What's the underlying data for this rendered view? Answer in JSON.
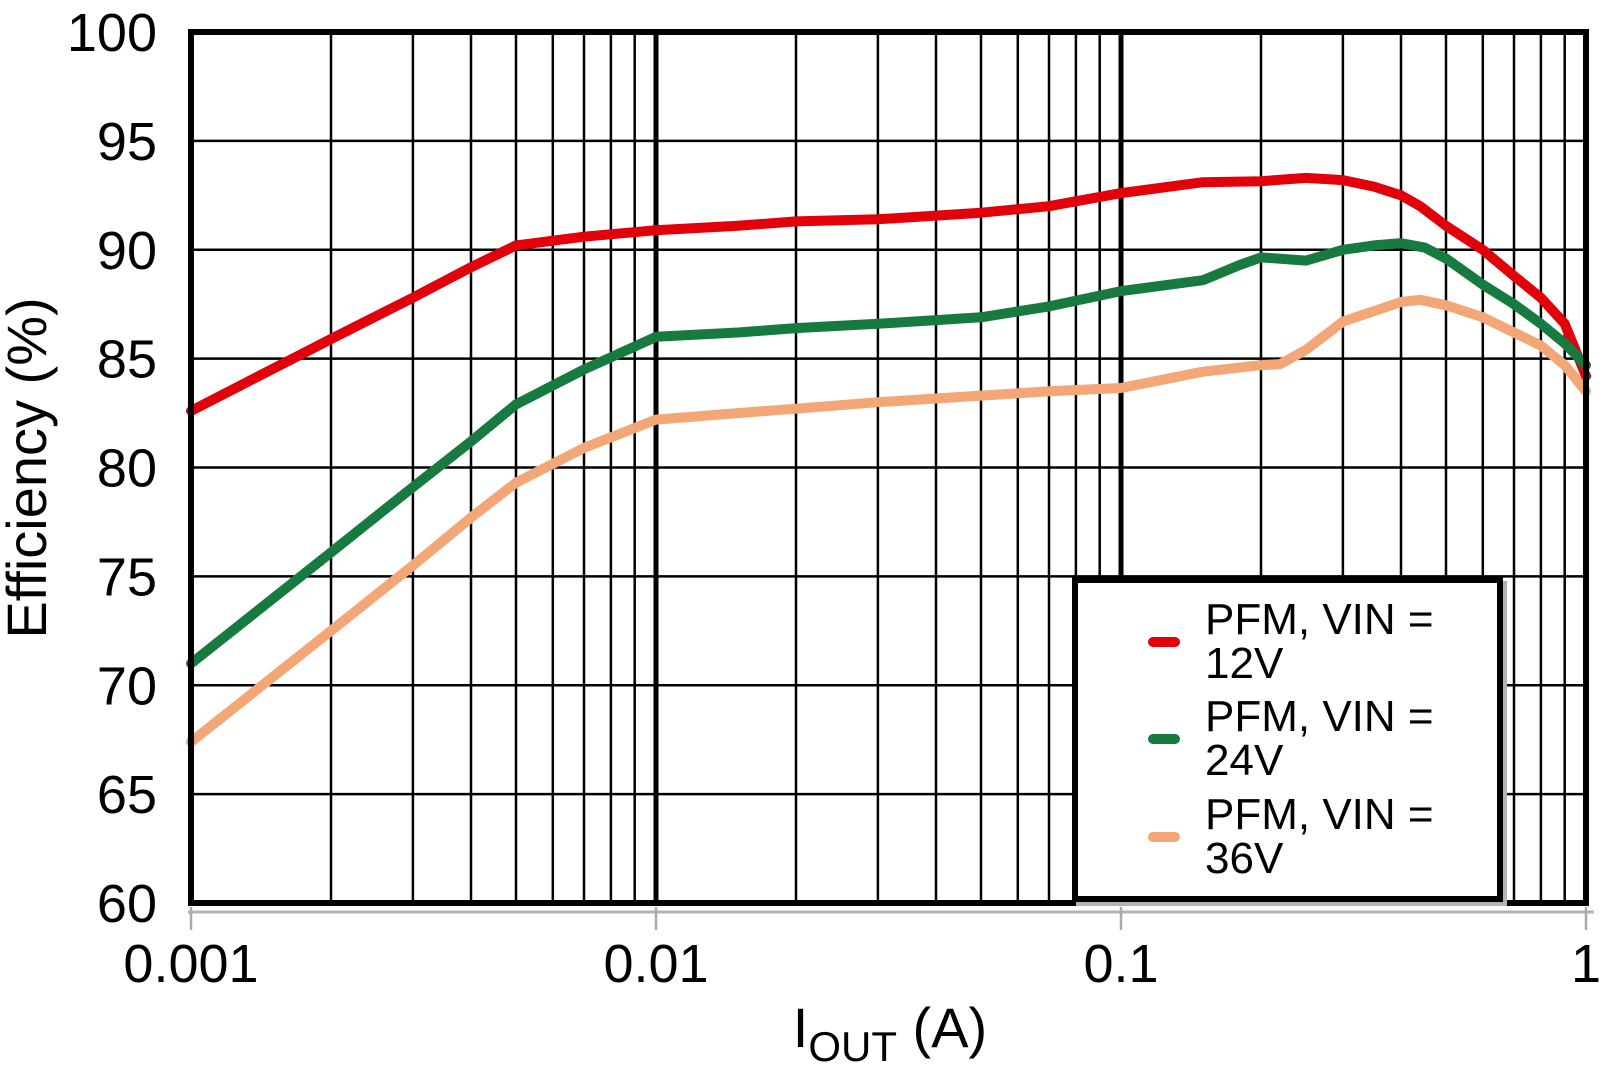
{
  "chart_data": {
    "type": "line",
    "title": "",
    "xlabel": {
      "main": "I",
      "sub": "OUT",
      "rest": " (A)"
    },
    "ylabel": "Efficiency (%)",
    "x_scale": "log",
    "xlim": [
      0.001,
      1
    ],
    "ylim": [
      60,
      100
    ],
    "y_step": 5,
    "grid": "on",
    "legend_position": "bottom-right-overlay",
    "x_ticks": [
      {
        "value": 0.001,
        "label": "0.001"
      },
      {
        "value": 0.01,
        "label": "0.01"
      },
      {
        "value": 0.1,
        "label": "0.1"
      },
      {
        "value": 1,
        "label": "1"
      }
    ],
    "y_ticks": [
      {
        "value": 60,
        "label": "60"
      },
      {
        "value": 65,
        "label": "65"
      },
      {
        "value": 70,
        "label": "70"
      },
      {
        "value": 75,
        "label": "75"
      },
      {
        "value": 80,
        "label": "80"
      },
      {
        "value": 85,
        "label": "85"
      },
      {
        "value": 90,
        "label": "90"
      },
      {
        "value": 95,
        "label": "95"
      },
      {
        "value": 100,
        "label": "100"
      }
    ],
    "series": [
      {
        "name": "PFM, VIN = 12V",
        "color": "#E2000B",
        "points": [
          [
            0.001,
            82.6
          ],
          [
            0.002,
            85.9
          ],
          [
            0.003,
            87.8
          ],
          [
            0.004,
            89.2
          ],
          [
            0.005,
            90.2
          ],
          [
            0.007,
            90.6
          ],
          [
            0.01,
            90.9
          ],
          [
            0.015,
            91.1
          ],
          [
            0.02,
            91.3
          ],
          [
            0.03,
            91.4
          ],
          [
            0.05,
            91.7
          ],
          [
            0.07,
            92.0
          ],
          [
            0.1,
            92.6
          ],
          [
            0.15,
            93.1
          ],
          [
            0.2,
            93.15
          ],
          [
            0.25,
            93.3
          ],
          [
            0.3,
            93.2
          ],
          [
            0.35,
            92.9
          ],
          [
            0.4,
            92.5
          ],
          [
            0.44,
            92.0
          ],
          [
            0.5,
            91.1
          ],
          [
            0.6,
            90.0
          ],
          [
            0.7,
            88.8
          ],
          [
            0.8,
            87.8
          ],
          [
            0.9,
            86.6
          ],
          [
            1,
            84.2
          ]
        ]
      },
      {
        "name": "PFM, VIN = 24V",
        "color": "#177B3F",
        "points": [
          [
            0.001,
            71.0
          ],
          [
            0.002,
            76.1
          ],
          [
            0.003,
            79.1
          ],
          [
            0.004,
            81.2
          ],
          [
            0.005,
            82.9
          ],
          [
            0.007,
            84.5
          ],
          [
            0.01,
            86.0
          ],
          [
            0.015,
            86.2
          ],
          [
            0.02,
            86.4
          ],
          [
            0.03,
            86.6
          ],
          [
            0.05,
            86.9
          ],
          [
            0.07,
            87.4
          ],
          [
            0.1,
            88.1
          ],
          [
            0.15,
            88.6
          ],
          [
            0.18,
            89.3
          ],
          [
            0.2,
            89.65
          ],
          [
            0.25,
            89.5
          ],
          [
            0.3,
            90.0
          ],
          [
            0.35,
            90.2
          ],
          [
            0.4,
            90.3
          ],
          [
            0.45,
            90.1
          ],
          [
            0.5,
            89.6
          ],
          [
            0.6,
            88.4
          ],
          [
            0.7,
            87.5
          ],
          [
            0.8,
            86.6
          ],
          [
            0.9,
            85.7
          ],
          [
            1,
            84.7
          ]
        ]
      },
      {
        "name": "PFM, VIN = 36V",
        "color": "#F3A676",
        "points": [
          [
            0.001,
            67.4
          ],
          [
            0.002,
            72.5
          ],
          [
            0.003,
            75.5
          ],
          [
            0.004,
            77.7
          ],
          [
            0.005,
            79.3
          ],
          [
            0.007,
            80.9
          ],
          [
            0.01,
            82.2
          ],
          [
            0.015,
            82.5
          ],
          [
            0.02,
            82.7
          ],
          [
            0.03,
            83.0
          ],
          [
            0.05,
            83.3
          ],
          [
            0.07,
            83.5
          ],
          [
            0.1,
            83.65
          ],
          [
            0.15,
            84.4
          ],
          [
            0.2,
            84.7
          ],
          [
            0.22,
            84.75
          ],
          [
            0.25,
            85.4
          ],
          [
            0.3,
            86.7
          ],
          [
            0.4,
            87.6
          ],
          [
            0.44,
            87.7
          ],
          [
            0.5,
            87.45
          ],
          [
            0.6,
            86.9
          ],
          [
            0.7,
            86.2
          ],
          [
            0.8,
            85.6
          ],
          [
            0.9,
            84.7
          ],
          [
            1,
            83.5
          ]
        ]
      }
    ]
  }
}
